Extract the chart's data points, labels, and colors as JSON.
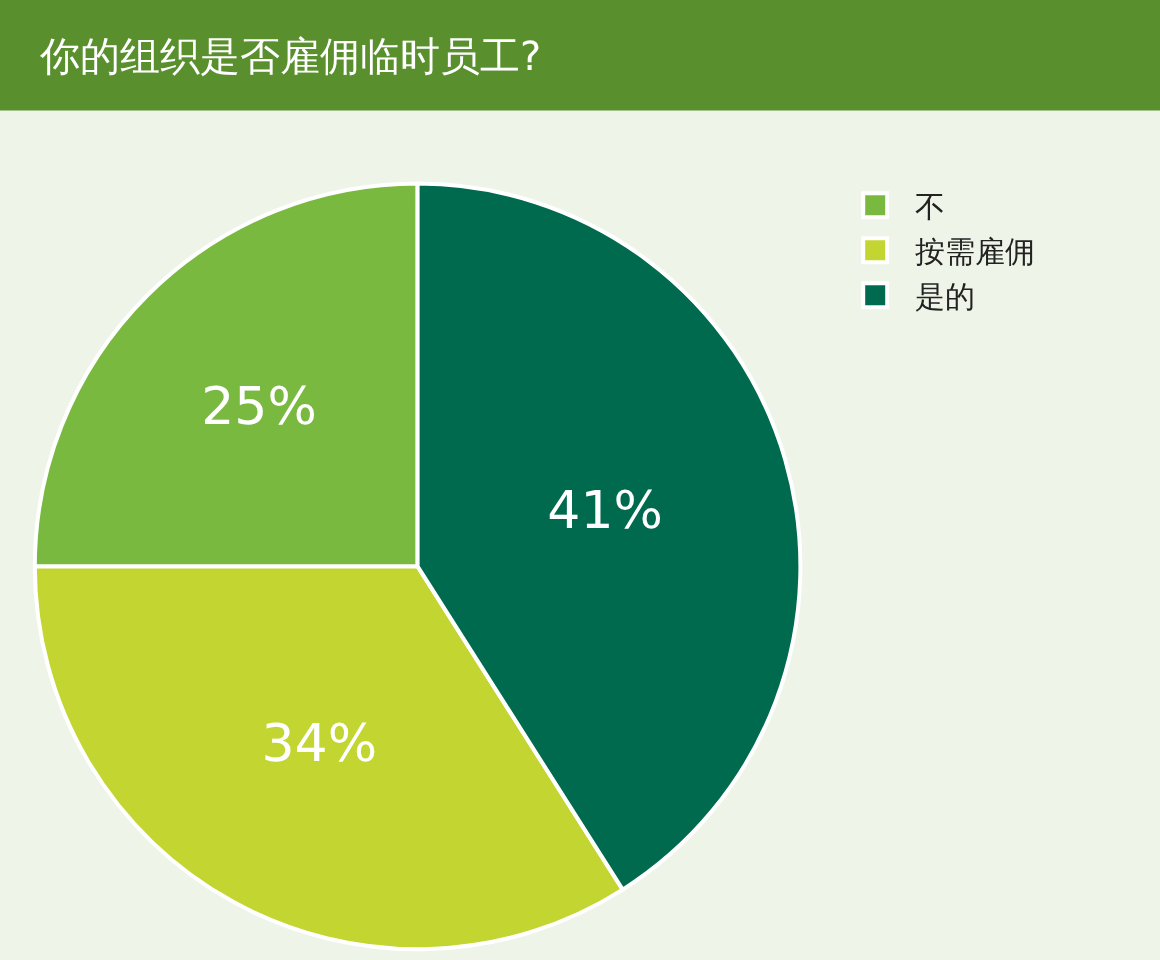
{
  "chart_data": {
    "type": "pie",
    "title": "你的组织是否雇佣临时员工?",
    "categories": [
      "不",
      "按需雇佣",
      "是的"
    ],
    "values": [
      25,
      34,
      41
    ],
    "colors": [
      "#7ab940",
      "#c3d530",
      "#006a4e"
    ],
    "value_labels": [
      "25%",
      "34%",
      "41%"
    ],
    "legend": "top right"
  }
}
